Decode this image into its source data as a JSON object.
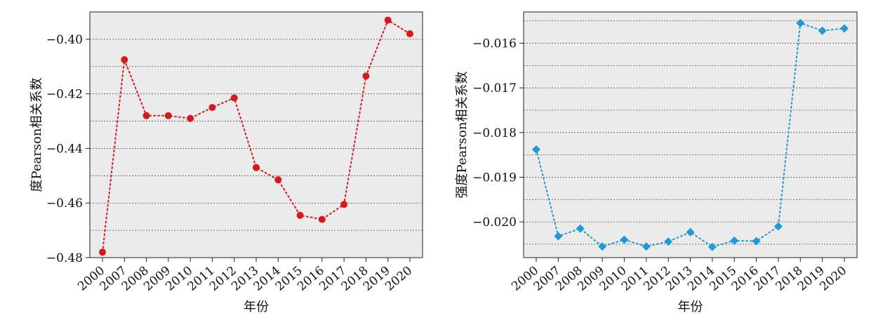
{
  "chart_data": [
    {
      "type": "line",
      "marker": "circle",
      "line_style": "dotted",
      "color": "#d7191c",
      "xlabel": "年份",
      "ylabel": "度Pearson相关系数",
      "categories": [
        "2000",
        "2007",
        "2008",
        "2009",
        "2010",
        "2011",
        "2012",
        "2013",
        "2014",
        "2015",
        "2016",
        "2017",
        "2018",
        "2019",
        "2020"
      ],
      "values": [
        -0.478,
        -0.4075,
        -0.428,
        -0.428,
        -0.429,
        -0.425,
        -0.4215,
        -0.447,
        -0.4515,
        -0.4645,
        -0.466,
        -0.4605,
        -0.4135,
        -0.393,
        -0.398
      ],
      "ylim": [
        -0.48,
        -0.39
      ],
      "yticks": [
        "-0.48",
        "-0.46",
        "-0.44",
        "-0.42",
        "-0.40"
      ],
      "grid": "horizontal-dotted",
      "background": "#ebebeb"
    },
    {
      "type": "line",
      "marker": "diamond",
      "line_style": "dotted",
      "color": "#1e9ad6",
      "xlabel": "年份",
      "ylabel": "强度Pearson相关系数",
      "categories": [
        "2000",
        "2007",
        "2008",
        "2009",
        "2010",
        "2011",
        "2012",
        "2013",
        "2014",
        "2015",
        "2016",
        "2017",
        "2018",
        "2019",
        "2020"
      ],
      "values": [
        -0.01838,
        -0.02032,
        -0.02015,
        -0.02055,
        -0.0204,
        -0.02055,
        -0.02044,
        -0.02023,
        -0.02056,
        -0.02042,
        -0.02043,
        -0.0201,
        -0.01555,
        -0.01572,
        -0.01567
      ],
      "ylim": [
        -0.0208,
        -0.0153
      ],
      "yticks": [
        "-0.020",
        "-0.019",
        "-0.018",
        "-0.017",
        "-0.016"
      ],
      "grid": "horizontal-dotted",
      "background": "#ebebeb"
    }
  ]
}
